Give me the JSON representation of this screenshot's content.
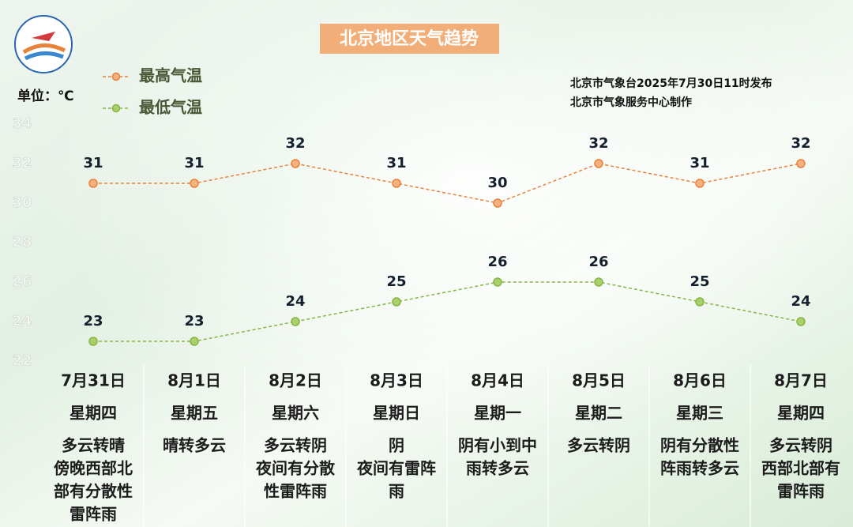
{
  "chart_data": {
    "type": "line",
    "title": "北京地区天气趋势",
    "unit_label": "单位：℃",
    "source": [
      "北京市气象台2025年7月30日11时发布",
      "北京市气象服务中心制作"
    ],
    "categories": [
      "7月31日",
      "8月1日",
      "8月2日",
      "8月3日",
      "8月4日",
      "8月5日",
      "8月6日",
      "8月7日"
    ],
    "weekdays": [
      "星期四",
      "星期五",
      "星期六",
      "星期日",
      "星期一",
      "星期二",
      "星期三",
      "星期四"
    ],
    "weather": [
      [
        "多云转晴",
        "傍晚西部北",
        "部有分散性",
        "雷阵雨"
      ],
      [
        "晴转多云"
      ],
      [
        "多云转阴",
        "夜间有分散",
        "性雷阵雨"
      ],
      [
        "阴",
        "夜间有雷阵",
        "雨"
      ],
      [
        "阴有小到中",
        "雨转多云"
      ],
      [
        "多云转阴"
      ],
      [
        "阴有分散性",
        "阵雨转多云"
      ],
      [
        "多云转阴",
        "西部北部有",
        "雷阵雨"
      ]
    ],
    "series": [
      {
        "name": "最高气温",
        "color": "#e8813a",
        "values": [
          31,
          31,
          32,
          31,
          30,
          32,
          31,
          32
        ]
      },
      {
        "name": "最低气温",
        "color": "#86b545",
        "values": [
          23,
          23,
          24,
          25,
          26,
          26,
          25,
          24
        ]
      }
    ],
    "ylim": [
      22,
      34
    ],
    "yticks": [
      22,
      24,
      26,
      28,
      30,
      32,
      34
    ],
    "grid": false
  }
}
